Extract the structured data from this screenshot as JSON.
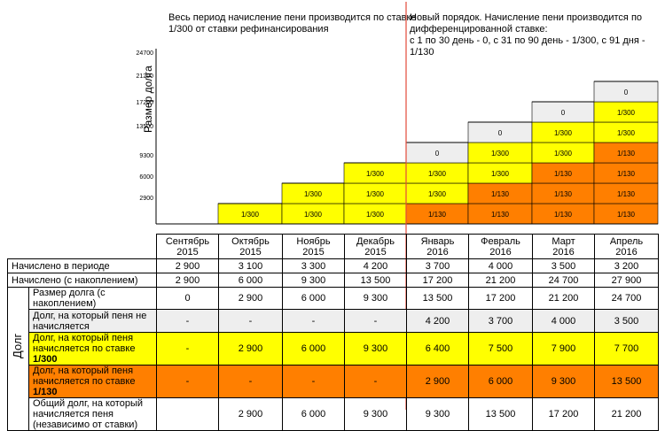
{
  "captions": {
    "left": "Весь период начисление пени производится по ставке\n1/300 от ставки рефинансирования",
    "right": "Новый порядок. Начисление пени производится по\nдифференцированной ставке:\nс 1 по 30 день - 0, с 31 по 90 день - 1/300, с 91 дня - 1/130"
  },
  "colors": {
    "yellow": "#ffff00",
    "orange": "#ff7f00",
    "gray": "#eeeeee",
    "divider": "#e34a3a"
  },
  "chart_data": {
    "type": "bar",
    "stacked": true,
    "ylabel": "Размер долга",
    "ylim": [
      0,
      24700
    ],
    "yticks": [
      2900,
      6000,
      9300,
      13500,
      17200,
      21200,
      24700
    ],
    "categories": [
      "Сентябрь 2015",
      "Октябрь 2015",
      "Ноябрь 2015",
      "Декабрь 2015",
      "Январь 2016",
      "Февраль 2016",
      "Март 2016",
      "Апрель 2016"
    ],
    "segments": [
      [
        {
          "tier": "1/300",
          "label": "1/300"
        }
      ],
      [
        {
          "tier": "1/300",
          "label": "1/300"
        },
        {
          "tier": "1/300",
          "label": "1/300"
        }
      ],
      [
        {
          "tier": "1/300",
          "label": "1/300"
        },
        {
          "tier": "1/300",
          "label": "1/300"
        },
        {
          "tier": "1/300",
          "label": "1/300"
        }
      ],
      [
        {
          "tier": "1/130",
          "label": "1/130"
        },
        {
          "tier": "1/300",
          "label": "1/300"
        },
        {
          "tier": "1/300",
          "label": "1/300"
        },
        {
          "tier": "0",
          "label": "0"
        }
      ],
      [
        {
          "tier": "1/130",
          "label": "1/130"
        },
        {
          "tier": "1/130",
          "label": "1/130"
        },
        {
          "tier": "1/300",
          "label": "1/300"
        },
        {
          "tier": "1/300",
          "label": "1/300"
        },
        {
          "tier": "0",
          "label": "0"
        }
      ],
      [
        {
          "tier": "1/130",
          "label": "1/130"
        },
        {
          "tier": "1/130",
          "label": "1/130"
        },
        {
          "tier": "1/130",
          "label": "1/130"
        },
        {
          "tier": "1/300",
          "label": "1/300"
        },
        {
          "tier": "1/300",
          "label": "1/300"
        },
        {
          "tier": "0",
          "label": "0"
        }
      ],
      [
        {
          "tier": "1/130",
          "label": "1/130"
        },
        {
          "tier": "1/130",
          "label": "1/130"
        },
        {
          "tier": "1/130",
          "label": "1/130"
        },
        {
          "tier": "1/130",
          "label": "1/130"
        },
        {
          "tier": "1/300",
          "label": "1/300"
        },
        {
          "tier": "1/300",
          "label": "1/300"
        },
        {
          "tier": "0",
          "label": "0"
        }
      ]
    ],
    "bar_start_index": 1
  },
  "table": {
    "months": [
      "Сентябрь\n2015",
      "Октябрь\n2015",
      "Ноябрь\n2015",
      "Декабрь\n2015",
      "Январь\n2016",
      "Февраль\n2016",
      "Март\n2016",
      "Апрель\n2016"
    ],
    "top_rows": [
      {
        "label": "Начислено в периоде",
        "values": [
          "2 900",
          "3 100",
          "3 300",
          "4 200",
          "3 700",
          "4 000",
          "3 500",
          "3 200"
        ]
      },
      {
        "label": "Начислено (с накоплением)",
        "values": [
          "2 900",
          "6 000",
          "9 300",
          "13 500",
          "17 200",
          "21 200",
          "24 700",
          "27 900"
        ]
      }
    ],
    "group_label": "Долг",
    "debt_rows": [
      {
        "label": "Размер долга (с накоплением)",
        "label_bold": "",
        "style": "white",
        "values": [
          "0",
          "2 900",
          "6 000",
          "9 300",
          "13 500",
          "17 200",
          "21 200",
          "24 700"
        ]
      },
      {
        "label": "Долг, на который пеня не\nначисляется",
        "label_bold": "",
        "style": "gray",
        "values": [
          "-",
          "-",
          "-",
          "-",
          "4 200",
          "3 700",
          "4 000",
          "3 500"
        ]
      },
      {
        "label": "Долг, на который пеня\nначисляется по ставке ",
        "label_bold": "1/300",
        "style": "yellow",
        "values": [
          "-",
          "2 900",
          "6 000",
          "9 300",
          "6 400",
          "7 500",
          "7 900",
          "7 700"
        ]
      },
      {
        "label": "Долг, на который пеня\nначисляется по ставке ",
        "label_bold": "1/130",
        "style": "orange",
        "values": [
          "-",
          "-",
          "-",
          "-",
          "2 900",
          "6 000",
          "9 300",
          "13 500"
        ]
      },
      {
        "label": "Общий долг, на который\nначисляется пеня\n(независимо от ставки)",
        "label_bold": "",
        "style": "white",
        "values": [
          "",
          "2 900",
          "6 000",
          "9 300",
          "9 300",
          "13 500",
          "17 200",
          "21 200"
        ]
      }
    ]
  }
}
